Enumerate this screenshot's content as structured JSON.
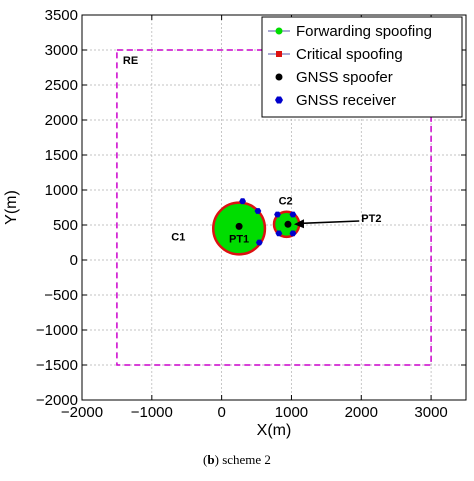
{
  "chart_data": {
    "type": "scatter",
    "xlabel": "X(m)",
    "ylabel": "Y(m)",
    "xlim": [
      -2000,
      3500
    ],
    "ylim": [
      -2000,
      3500
    ],
    "x_ticks": [
      -2000,
      -1000,
      0,
      1000,
      2000,
      3000
    ],
    "y_ticks": [
      -2000,
      -1500,
      -1000,
      -500,
      0,
      500,
      1000,
      1500,
      2000,
      2500,
      3000,
      3500
    ],
    "x_tick_labels": [
      "−2000",
      "−1000",
      "0",
      "1000",
      "2000",
      "3000"
    ],
    "y_tick_labels": [
      "−2000",
      "−1500",
      "−1000",
      "−500",
      "0",
      "500",
      "1000",
      "1500",
      "2000",
      "2500",
      "3000",
      "3500"
    ],
    "grid": true,
    "legend_position": "top-right",
    "region": {
      "label": "RE",
      "x": [
        -1500,
        3000
      ],
      "y": [
        -1500,
        3000
      ],
      "color": "#cc00cc"
    },
    "series": [
      {
        "name": "Forwarding spoofing",
        "marker": "circle",
        "color": "#00dd00",
        "line_color": "#5555aa",
        "zones": [
          {
            "label": "C1",
            "cx": 250,
            "cy": 450,
            "r": 370
          },
          {
            "label": "C2",
            "cx": 930,
            "cy": 510,
            "r": 180
          }
        ]
      },
      {
        "name": "Critical spoofing",
        "marker": "square",
        "color": "#dd1111",
        "line_color": "#5555aa",
        "zones": [
          {
            "label": "C1",
            "cx": 250,
            "cy": 450,
            "r": 370
          },
          {
            "label": "C2",
            "cx": 930,
            "cy": 510,
            "r": 180
          }
        ]
      },
      {
        "name": "GNSS spoofer",
        "marker": "circle",
        "color": "#000000",
        "points": [
          {
            "label": "PT1",
            "x": 250,
            "y": 480
          },
          {
            "label": "PT2",
            "x": 950,
            "y": 510
          }
        ]
      },
      {
        "name": "GNSS receiver",
        "marker": "hexagon",
        "color": "#0000cc",
        "points": [
          {
            "x": 300,
            "y": 840
          },
          {
            "x": 520,
            "y": 700
          },
          {
            "x": 540,
            "y": 250
          },
          {
            "x": 800,
            "y": 650
          },
          {
            "x": 1020,
            "y": 650
          },
          {
            "x": 820,
            "y": 380
          },
          {
            "x": 1020,
            "y": 380
          }
        ]
      }
    ],
    "annotations": [
      {
        "text": "PT2",
        "x": 2000,
        "y": 600,
        "arrow_to": [
          950,
          510
        ]
      }
    ]
  },
  "caption": {
    "prefix": "(",
    "letter": "b",
    "suffix": ") scheme 2"
  },
  "colors": {
    "axis": "#000000",
    "grid": "#b0b0b0"
  }
}
